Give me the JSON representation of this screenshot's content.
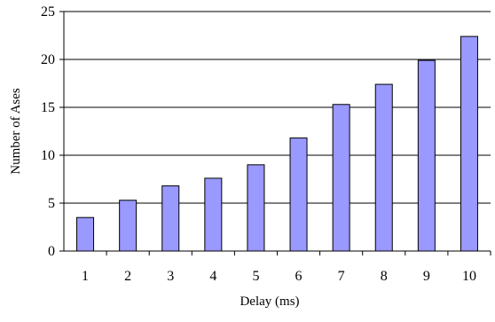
{
  "chart_data": {
    "type": "bar",
    "title": "",
    "xlabel": "Delay (ms)",
    "ylabel": "Number of Ases",
    "categories": [
      "1",
      "2",
      "3",
      "4",
      "5",
      "6",
      "7",
      "8",
      "9",
      "10"
    ],
    "values": [
      3.5,
      5.3,
      6.8,
      7.6,
      9.0,
      11.8,
      15.3,
      17.4,
      19.9,
      22.4
    ],
    "ylim": [
      0,
      25
    ],
    "yticks": [
      "0",
      "5",
      "10",
      "15",
      "20",
      "25"
    ],
    "grid": "horizontal",
    "legend": "none",
    "bar_color": "#9999ff",
    "bar_edge_color": "#000000"
  }
}
